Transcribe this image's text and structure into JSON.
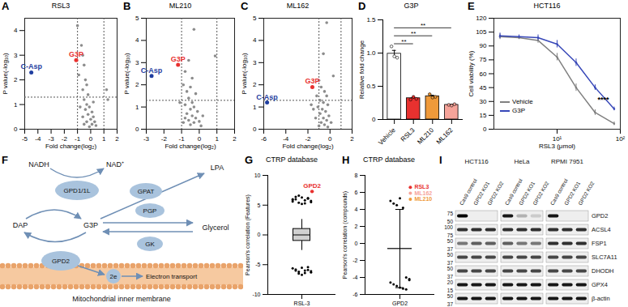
{
  "chart_data": [
    {
      "panel": "A",
      "type": "scatter",
      "title": "RSL3",
      "x_label": "Fold change(log₂)",
      "y_label": "P value(-log₁₀)",
      "xlim": [
        -5,
        2
      ],
      "xticks": [
        -5,
        -4,
        -3,
        -2,
        -1,
        0,
        1,
        2
      ],
      "ylim": [
        0,
        4.5
      ],
      "yticks": [
        0,
        1,
        2,
        3,
        4
      ],
      "color": "#8c8c8c",
      "thresholds": {
        "x": [
          -1,
          1
        ],
        "y": 1.3
      },
      "points": [
        [
          -1.0,
          4.2
        ],
        [
          -0.7,
          3.4
        ],
        [
          -0.6,
          3.0
        ],
        [
          -0.5,
          2.6
        ],
        [
          -0.9,
          2.2
        ],
        [
          -0.4,
          2.0
        ],
        [
          -0.3,
          1.8
        ],
        [
          -0.6,
          1.6
        ],
        [
          -0.2,
          1.4
        ],
        [
          -0.5,
          1.2
        ],
        [
          -0.3,
          1.0
        ],
        [
          -0.1,
          0.9
        ],
        [
          -0.4,
          0.8
        ],
        [
          0.1,
          0.7
        ],
        [
          -0.2,
          0.6
        ],
        [
          0.2,
          0.5
        ],
        [
          -0.6,
          0.5
        ],
        [
          0.0,
          0.4
        ],
        [
          0.3,
          0.3
        ],
        [
          -0.3,
          0.3
        ],
        [
          0.1,
          0.2
        ],
        [
          -0.1,
          0.1
        ],
        [
          0.4,
          0.15
        ],
        [
          -0.8,
          0.9
        ],
        [
          1.2,
          1.6
        ],
        [
          1.3,
          1.2
        ],
        [
          -0.5,
          0.2
        ],
        [
          0.2,
          1.1
        ]
      ],
      "highlights": [
        {
          "name": "G3P",
          "x": -1.1,
          "y": 2.8,
          "color": "#e8312f"
        },
        {
          "name": "C-Asp",
          "x": -4.5,
          "y": 2.3,
          "color": "#1f3ea0"
        }
      ]
    },
    {
      "panel": "B",
      "type": "scatter",
      "title": "ML210",
      "x_label": "Fold change(log₂)",
      "y_label": "P value(-log₁₀)",
      "xlim": [
        -3,
        2
      ],
      "xticks": [
        -3,
        -2,
        -1,
        0,
        1,
        2
      ],
      "ylim": [
        0,
        5
      ],
      "yticks": [
        0,
        1,
        2,
        3,
        4,
        5
      ],
      "color": "#8c8c8c",
      "thresholds": {
        "x": [
          -1,
          1
        ],
        "y": 1.3
      },
      "points": [
        [
          -0.3,
          4.5
        ],
        [
          0.9,
          3.3
        ],
        [
          -0.6,
          3.1
        ],
        [
          -0.8,
          2.6
        ],
        [
          -0.4,
          2.3
        ],
        [
          -0.9,
          2.0
        ],
        [
          -0.5,
          1.9
        ],
        [
          -0.7,
          1.7
        ],
        [
          -0.2,
          1.6
        ],
        [
          -0.6,
          1.4
        ],
        [
          -0.4,
          1.2
        ],
        [
          -0.8,
          1.1
        ],
        [
          -0.3,
          1.0
        ],
        [
          -0.5,
          0.9
        ],
        [
          -0.1,
          0.8
        ],
        [
          -0.7,
          0.7
        ],
        [
          -0.4,
          0.6
        ],
        [
          -0.2,
          0.5
        ],
        [
          -0.6,
          0.4
        ],
        [
          0.0,
          0.35
        ],
        [
          -0.3,
          0.3
        ],
        [
          -0.5,
          0.2
        ],
        [
          0.1,
          0.15
        ],
        [
          -0.8,
          0.5
        ],
        [
          -1.1,
          1.2
        ],
        [
          -0.9,
          0.3
        ],
        [
          0.2,
          0.6
        ]
      ],
      "highlights": [
        {
          "name": "G3P",
          "x": -1.2,
          "y": 2.9,
          "color": "#e8312f"
        },
        {
          "name": "C-Asp",
          "x": -2.7,
          "y": 2.4,
          "color": "#1f3ea0"
        }
      ]
    },
    {
      "panel": "C",
      "type": "scatter",
      "title": "ML162",
      "x_label": "Fold change(log₂)",
      "y_label": "P value(-log₁₀)",
      "xlim": [
        -6,
        2
      ],
      "xticks": [
        -6,
        -4,
        -2,
        0,
        2
      ],
      "ylim": [
        0,
        5
      ],
      "yticks": [
        0,
        1,
        2,
        3,
        4,
        5
      ],
      "color": "#8c8c8c",
      "thresholds": {
        "x": [
          -1,
          1
        ],
        "y": 1.3
      },
      "points": [
        [
          -0.3,
          4.8
        ],
        [
          -0.6,
          3.4
        ],
        [
          0.3,
          2.4
        ],
        [
          -1.0,
          2.2
        ],
        [
          -0.8,
          1.9
        ],
        [
          -0.5,
          1.7
        ],
        [
          -1.2,
          1.5
        ],
        [
          -0.3,
          1.5
        ],
        [
          -0.9,
          1.3
        ],
        [
          -0.6,
          1.2
        ],
        [
          -0.2,
          1.1
        ],
        [
          -1.1,
          1.0
        ],
        [
          -0.7,
          0.9
        ],
        [
          -0.4,
          0.8
        ],
        [
          -0.9,
          0.7
        ],
        [
          -0.1,
          0.6
        ],
        [
          -0.6,
          0.5
        ],
        [
          -1.3,
          0.5
        ],
        [
          -0.3,
          0.4
        ],
        [
          -0.8,
          0.3
        ],
        [
          0.1,
          0.3
        ],
        [
          -0.5,
          0.2
        ],
        [
          -1.0,
          0.15
        ],
        [
          -0.2,
          0.1
        ],
        [
          -1.5,
          0.9
        ],
        [
          -1.7,
          1.1
        ]
      ],
      "highlights": [
        {
          "name": "G3P",
          "x": -1.6,
          "y": 1.9,
          "color": "#e8312f"
        },
        {
          "name": "C-Asp",
          "x": -5.7,
          "y": 1.2,
          "color": "#1f3ea0"
        }
      ]
    },
    {
      "panel": "D",
      "type": "bar",
      "title": "G3P",
      "y_label": "Relative fold change",
      "categories": [
        "Vehicle",
        "RSL3",
        "ML210",
        "ML162"
      ],
      "values": [
        0.99,
        0.32,
        0.35,
        0.22
      ],
      "errors": [
        0.05,
        0.01,
        0.015,
        0.005
      ],
      "points": [
        [
          1.1,
          0.95,
          0.93
        ],
        [
          0.3,
          0.34,
          0.31
        ],
        [
          0.38,
          0.33,
          0.34
        ],
        [
          0.22,
          0.21,
          0.23
        ]
      ],
      "colors": [
        "#ffffff",
        "#e8312f",
        "#ef9a3a",
        "#f6a49a"
      ],
      "ylim": [
        0,
        1.5
      ],
      "yticks": [
        0,
        0.5,
        {
          "value": 1,
          "label": "1.0"
        },
        1.5
      ],
      "significance": [
        {
          "from": "Vehicle",
          "to": "RSL3",
          "label": "**"
        },
        {
          "from": "Vehicle",
          "to": "ML210",
          "label": "**"
        },
        {
          "from": "Vehicle",
          "to": "ML162",
          "label": "**"
        }
      ]
    },
    {
      "panel": "E",
      "type": "line",
      "title": "HCT116",
      "x_label": "RSL3 (μmol)",
      "y_label": "Cell viability (%)",
      "log": "x",
      "x": [
        1.25,
        2.5,
        5,
        10,
        20,
        40,
        80
      ],
      "xlim": [
        1,
        100
      ],
      "xticks": [
        {
          "value": 10,
          "label": "10¹"
        },
        {
          "value": 100,
          "label": "10²"
        }
      ],
      "ylim": [
        0,
        120
      ],
      "yticks": [
        0,
        15,
        30,
        45,
        60,
        75,
        90,
        105,
        120
      ],
      "series": [
        {
          "name": "Vehicle",
          "color": "#808080",
          "values": [
            100,
            99,
            96,
            78,
            45,
            18,
            6
          ],
          "errors": [
            3,
            2,
            3,
            4,
            4,
            3,
            2
          ]
        },
        {
          "name": "G3P",
          "color": "#3747b8",
          "values": [
            101,
            100,
            99,
            92,
            72,
            45,
            22
          ],
          "errors": [
            3,
            2,
            3,
            4,
            4,
            3,
            2
          ]
        }
      ],
      "legend": "bottom-left",
      "annotation": "****"
    },
    {
      "panel": "G",
      "type": "box",
      "title": "CTRP database",
      "y_label": "Pearson's correlation (Features)",
      "categories": [
        "RSL-3"
      ],
      "ylim": [
        -10,
        10
      ],
      "yticks": [
        -10,
        -5,
        0,
        5,
        10
      ],
      "color": "#000000",
      "points": [
        5.6,
        6.0,
        5.4,
        6.3,
        5.8,
        6.1,
        5.5,
        5.9,
        6.4,
        6.6,
        5.2,
        5.3,
        6.2,
        5.7,
        6.0,
        -5.8,
        -6.2,
        -5.5,
        -6.4,
        -5.9,
        -6.1,
        -5.6,
        -6.0,
        -6.5,
        -6.7,
        -6.0,
        -5.4,
        -6.3
      ],
      "box": {
        "min": -2.6,
        "q1": -1.0,
        "median": 0,
        "q3": 1.0,
        "max": 2.6
      },
      "highlights": [
        {
          "name": "GPD2",
          "value": 7.3,
          "color": "#e8312f"
        }
      ]
    },
    {
      "panel": "H",
      "type": "scatter",
      "title": "CTRP database",
      "y_label": "Pearson's correlation (compounds)",
      "categories": [
        "GPD2"
      ],
      "ylim": [
        -6,
        8
      ],
      "yticks": [
        -6,
        -4,
        -2,
        0,
        2,
        4,
        6,
        8
      ],
      "color": "#000000",
      "points": [
        5.0,
        4.7,
        4.5,
        5.3,
        4.2,
        -4.0,
        -4.3,
        -4.6,
        -4.8,
        -5.0,
        -5.2,
        -5.3,
        -5.4,
        -4.2
      ],
      "mean": -0.6,
      "sd": 4.6,
      "highlights": [
        {
          "name": "RSL3",
          "value": 6.6,
          "color": "#e8312f"
        },
        {
          "name": "ML162",
          "value": 5.9,
          "color": "#f6a49a"
        },
        {
          "name": "ML210",
          "value": 5.2,
          "color": "#ef9a3a"
        }
      ]
    }
  ],
  "diagram": {
    "panel": "F",
    "metabolites": [
      "NADH",
      "NAD⁺",
      "DAP",
      "G3P",
      "LPA",
      "Glycerol"
    ],
    "enzymes": [
      "GPD1/1L",
      "GPAT",
      "PGP",
      "GK",
      "GPD2"
    ],
    "electron_label": "2e",
    "process": "Electron transport",
    "compartment": "Mitochondrial inner membrane"
  },
  "blot": {
    "panel": "I",
    "cell_lines": [
      "HCT116",
      "HeLa",
      "RPMI 7951"
    ],
    "lanes": [
      "Cas9 control",
      "GPD2 KO1",
      "GPD2 KO2"
    ],
    "rows": [
      {
        "protein": "GPD2",
        "markers": [
          75,
          50
        ],
        "intensity": [
          [
            1.0,
            0.0,
            0.0
          ],
          [
            0.9,
            0.25,
            0.15
          ],
          [
            0.9,
            0.0,
            0.0
          ]
        ]
      },
      {
        "protein": "ACSL4",
        "markers": [
          100,
          75
        ],
        "intensity": [
          [
            0.8,
            0.8,
            0.8
          ],
          [
            0.8,
            0.8,
            0.8
          ],
          [
            0.8,
            0.8,
            0.8
          ]
        ]
      },
      {
        "protein": "FSP1",
        "markers": [
          50,
          37
        ],
        "intensity": [
          [
            0.5,
            0.6,
            0.6
          ],
          [
            0.6,
            0.5,
            0.5
          ],
          [
            0.8,
            0.8,
            0.8
          ]
        ]
      },
      {
        "protein": "SLC7A11",
        "markers": [
          50,
          37
        ],
        "intensity": [
          [
            0.7,
            0.7,
            0.7
          ],
          [
            0.7,
            0.7,
            0.7
          ],
          [
            0.7,
            0.7,
            0.7
          ]
        ]
      },
      {
        "protein": "DHODH",
        "markers": [
          50,
          37
        ],
        "intensity": [
          [
            0.7,
            0.7,
            0.7
          ],
          [
            0.7,
            0.7,
            0.7
          ],
          [
            0.7,
            0.7,
            0.7
          ]
        ]
      },
      {
        "protein": "GPX4",
        "markers": [
          20,
          15
        ],
        "intensity": [
          [
            0.9,
            0.9,
            0.9
          ],
          [
            0.9,
            0.9,
            0.9
          ],
          [
            0.9,
            0.9,
            0.9
          ]
        ]
      },
      {
        "protein": "β-actin",
        "markers": [
          50,
          37
        ],
        "intensity": [
          [
            0.9,
            0.9,
            0.9
          ],
          [
            0.9,
            0.9,
            0.9
          ],
          [
            0.9,
            0.9,
            0.9
          ]
        ]
      }
    ]
  }
}
